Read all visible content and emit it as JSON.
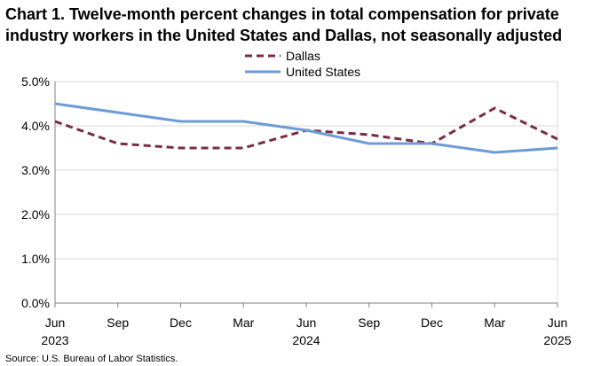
{
  "title": {
    "line1": "Chart 1. Twelve-month percent changes in total compensation for private",
    "line2": "industry workers in the United States and Dallas, not seasonally adjusted"
  },
  "source": "Source: U.S. Bureau of Labor Statistics.",
  "colors": {
    "dallas": "#7b2c45",
    "united_states": "#6c9bd6",
    "axis": "#808080",
    "grid": "#d9d9d9"
  },
  "chart_data": {
    "type": "line",
    "title": "Chart 1. Twelve-month percent changes in total compensation for private industry workers in the United States and Dallas, not seasonally adjusted",
    "xlabel": "",
    "ylabel": "",
    "ylim": [
      0,
      5
    ],
    "y_ticks": [
      {
        "value": 0,
        "label": "0.0%"
      },
      {
        "value": 1,
        "label": "1.0%"
      },
      {
        "value": 2,
        "label": "2.0%"
      },
      {
        "value": 3,
        "label": "3.0%"
      },
      {
        "value": 4,
        "label": "4.0%"
      },
      {
        "value": 5,
        "label": "5.0%"
      }
    ],
    "categories": [
      "Jun",
      "Sep",
      "Dec",
      "Mar",
      "Jun",
      "Sep",
      "Dec",
      "Mar",
      "Jun"
    ],
    "year_labels": [
      {
        "index": 0,
        "label": "2023"
      },
      {
        "index": 4,
        "label": "2024"
      },
      {
        "index": 8,
        "label": "2025"
      }
    ],
    "legend_position": "top-center",
    "series": [
      {
        "name": "Dallas",
        "style": "dashed",
        "values": [
          4.1,
          3.6,
          3.5,
          3.5,
          3.9,
          3.8,
          3.6,
          4.4,
          3.7
        ]
      },
      {
        "name": "United States",
        "style": "solid",
        "values": [
          4.5,
          4.3,
          4.1,
          4.1,
          3.9,
          3.6,
          3.6,
          3.4,
          3.5
        ]
      }
    ]
  }
}
